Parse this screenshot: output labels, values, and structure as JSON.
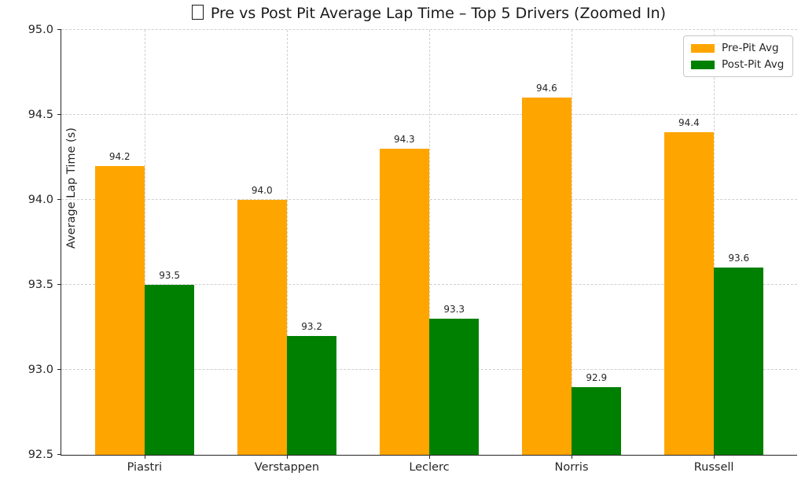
{
  "header": {
    "title_icon": "missing-emoji-tofu-box"
  },
  "chart_data": {
    "type": "bar",
    "title": "Pre vs Post Pit Average Lap Time – Top 5 Drivers (Zoomed In)",
    "xlabel": "",
    "ylabel": "Average Lap Time (s)",
    "categories": [
      "Piastri",
      "Verstappen",
      "Leclerc",
      "Norris",
      "Russell"
    ],
    "series": [
      {
        "name": "Pre-Pit Avg",
        "color": "#FFA500",
        "values": [
          94.2,
          94.0,
          94.3,
          94.6,
          94.4
        ]
      },
      {
        "name": "Post-Pit Avg",
        "color": "#008000",
        "values": [
          93.5,
          93.2,
          93.3,
          92.9,
          93.6
        ]
      }
    ],
    "bar_value_labels": [
      [
        "94.2",
        "94.0",
        "94.3",
        "94.6",
        "94.4"
      ],
      [
        "93.5",
        "93.2",
        "93.3",
        "92.9",
        "93.6"
      ]
    ],
    "ylim": [
      92.5,
      95.0
    ],
    "xlim": [
      -0.585,
      4.585
    ],
    "yticks": [
      92.5,
      93.0,
      93.5,
      94.0,
      94.5,
      95.0
    ],
    "ytick_labels": [
      "92.5",
      "93.0",
      "93.5",
      "94.0",
      "94.5",
      "95.0"
    ],
    "bar_width": 0.35,
    "grid": "dashed-both-axes",
    "grid_color": "#cfcfcf",
    "legend_position": "upper right"
  },
  "colors": {
    "pre_pit": "#FFA500",
    "post_pit": "#008000",
    "spine": "#262626",
    "text": "#262626",
    "background": "#ffffff"
  }
}
